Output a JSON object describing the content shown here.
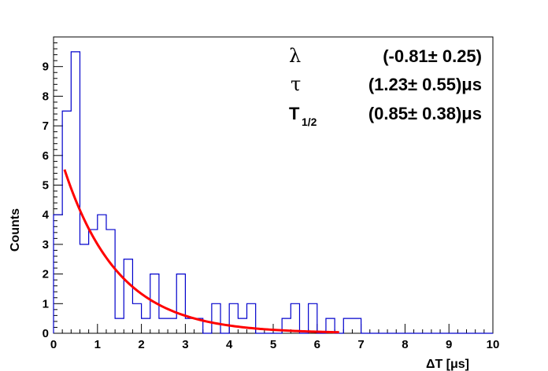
{
  "chart_data": {
    "type": "histogram",
    "title": "",
    "xlabel": "ΔT [μs]",
    "ylabel": "Counts",
    "xlim": [
      0,
      10
    ],
    "ylim": [
      0,
      10
    ],
    "x_ticks": [
      "0",
      "1",
      "2",
      "3",
      "4",
      "5",
      "6",
      "7",
      "8",
      "9",
      "10"
    ],
    "y_ticks": [
      "0",
      "1",
      "2",
      "3",
      "4",
      "5",
      "6",
      "7",
      "8",
      "9"
    ],
    "bin_width": 0.2,
    "bin_edges_start": 0.0,
    "series": [
      {
        "name": "data",
        "color": "#0000cc",
        "values": [
          4,
          7.5,
          9.5,
          3,
          3.5,
          4,
          3.5,
          0.5,
          2.5,
          1,
          0.5,
          2,
          0.5,
          0.5,
          2,
          0.5,
          0.5,
          0,
          1,
          0,
          1,
          0.5,
          1,
          0,
          0,
          0,
          0.5,
          1,
          0,
          1,
          0,
          0.5,
          0,
          0.5,
          0.5,
          0,
          0,
          0,
          0,
          0,
          0,
          0,
          0,
          0,
          0,
          0,
          0,
          0,
          0,
          0
        ]
      },
      {
        "name": "fit",
        "color": "#ff0000",
        "type": "exponential",
        "x_range": [
          0.25,
          6.5
        ],
        "amplitude": 6.77,
        "tau": 1.23
      }
    ],
    "annotations": [
      {
        "symbol": "λ",
        "value": "(-0.81± 0.25)"
      },
      {
        "symbol": "τ",
        "value": "(1.23± 0.55)μs"
      },
      {
        "symbol": "T",
        "subscript": "1/2",
        "value": "(0.85± 0.38)μs"
      }
    ]
  }
}
